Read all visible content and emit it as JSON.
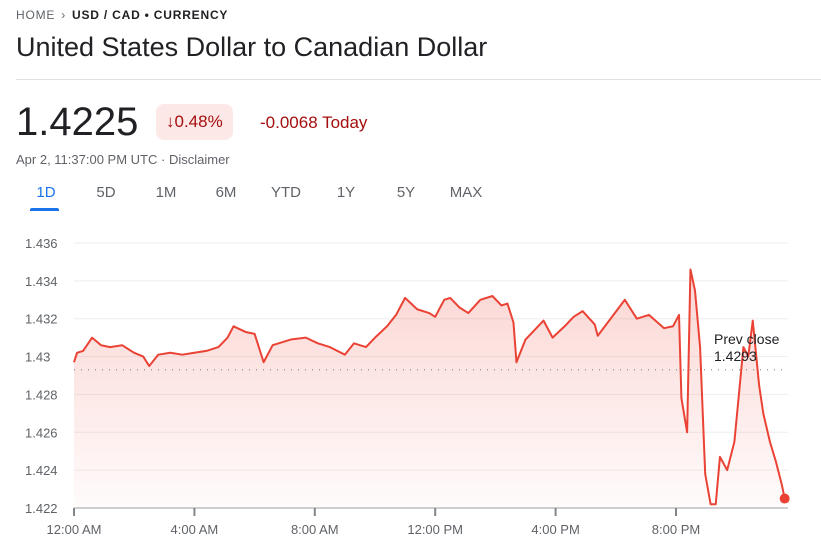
{
  "breadcrumb": {
    "home": "HOME",
    "current": "USD / CAD • CURRENCY"
  },
  "title": "United States Dollar to Canadian Dollar",
  "quote": {
    "price": "1.4225",
    "change_pct": "0.48%",
    "change_abs": "-0.0068 Today",
    "direction_icon": "arrow-down-icon",
    "timestamp": "Apr 2, 11:37:00 PM UTC ·",
    "disclaimer": "Disclaimer"
  },
  "tabs": [
    {
      "label": "1D",
      "active": true
    },
    {
      "label": "5D"
    },
    {
      "label": "1M"
    },
    {
      "label": "6M"
    },
    {
      "label": "YTD"
    },
    {
      "label": "1Y"
    },
    {
      "label": "5Y"
    },
    {
      "label": "MAX"
    }
  ],
  "colors": {
    "line": "#ea4335",
    "accent": "#1a73e8",
    "negative": "#a50e0e"
  },
  "chart_data": {
    "type": "area",
    "ylim": [
      1.422,
      1.436
    ],
    "yticks": [
      "1.436",
      "1.434",
      "1.432",
      "1.43",
      "1.428",
      "1.426",
      "1.424",
      "1.422"
    ],
    "ytick_values": [
      1.436,
      1.434,
      1.432,
      1.43,
      1.428,
      1.426,
      1.424,
      1.422
    ],
    "xticks": [
      "12:00 AM",
      "4:00 AM",
      "8:00 AM",
      "12:00 PM",
      "4:00 PM",
      "8:00 PM"
    ],
    "xtick_hours": [
      0,
      4,
      8,
      12,
      16,
      20
    ],
    "xlim_hours": [
      0,
      24
    ],
    "grid": true,
    "prev_close": {
      "label": "Prev close",
      "value": "1.4293"
    },
    "x_hours": [
      0,
      0.1,
      0.3,
      0.6,
      0.9,
      1.2,
      1.6,
      2.0,
      2.3,
      2.5,
      2.8,
      3.2,
      3.6,
      4.0,
      4.4,
      4.8,
      5.1,
      5.3,
      5.7,
      6.0,
      6.3,
      6.6,
      7.2,
      7.7,
      8.1,
      8.5,
      9.0,
      9.3,
      9.7,
      10.0,
      10.4,
      10.7,
      11.0,
      11.4,
      11.8,
      12.0,
      12.3,
      12.5,
      12.8,
      13.1,
      13.5,
      13.9,
      14.2,
      14.4,
      14.6,
      14.7,
      15.0,
      15.3,
      15.6,
      15.9,
      16.3,
      16.6,
      16.9,
      17.3,
      17.4,
      17.97,
      18.3,
      18.7,
      19.1,
      19.6,
      19.9,
      20.1,
      20.18,
      20.37,
      20.48,
      20.63,
      20.8,
      20.97,
      21.15,
      21.32,
      21.46,
      21.7,
      21.94,
      22.06,
      22.24,
      22.4,
      22.55,
      22.76,
      22.9,
      23.12,
      23.31,
      23.52,
      23.61
    ],
    "values": [
      1.4297,
      1.4302,
      1.4303,
      1.431,
      1.4306,
      1.4305,
      1.4306,
      1.4302,
      1.43,
      1.4295,
      1.4301,
      1.4302,
      1.4301,
      1.4302,
      1.4303,
      1.4305,
      1.431,
      1.4316,
      1.4313,
      1.4312,
      1.4297,
      1.4306,
      1.4309,
      1.431,
      1.4307,
      1.4305,
      1.4301,
      1.4307,
      1.4305,
      1.431,
      1.4316,
      1.4322,
      1.4331,
      1.4325,
      1.4323,
      1.4321,
      1.433,
      1.4331,
      1.4326,
      1.4323,
      1.433,
      1.4332,
      1.4327,
      1.4328,
      1.4318,
      1.4297,
      1.4309,
      1.4314,
      1.4319,
      1.431,
      1.4316,
      1.4321,
      1.4324,
      1.4317,
      1.4311,
      1.4323,
      1.433,
      1.432,
      1.4322,
      1.4315,
      1.4316,
      1.4322,
      1.4278,
      1.426,
      1.4346,
      1.4335,
      1.4305,
      1.4238,
      1.4222,
      1.4222,
      1.4247,
      1.424,
      1.4255,
      1.4275,
      1.4305,
      1.43,
      1.4319,
      1.4285,
      1.427,
      1.4255,
      1.4245,
      1.4232,
      1.4225
    ]
  }
}
